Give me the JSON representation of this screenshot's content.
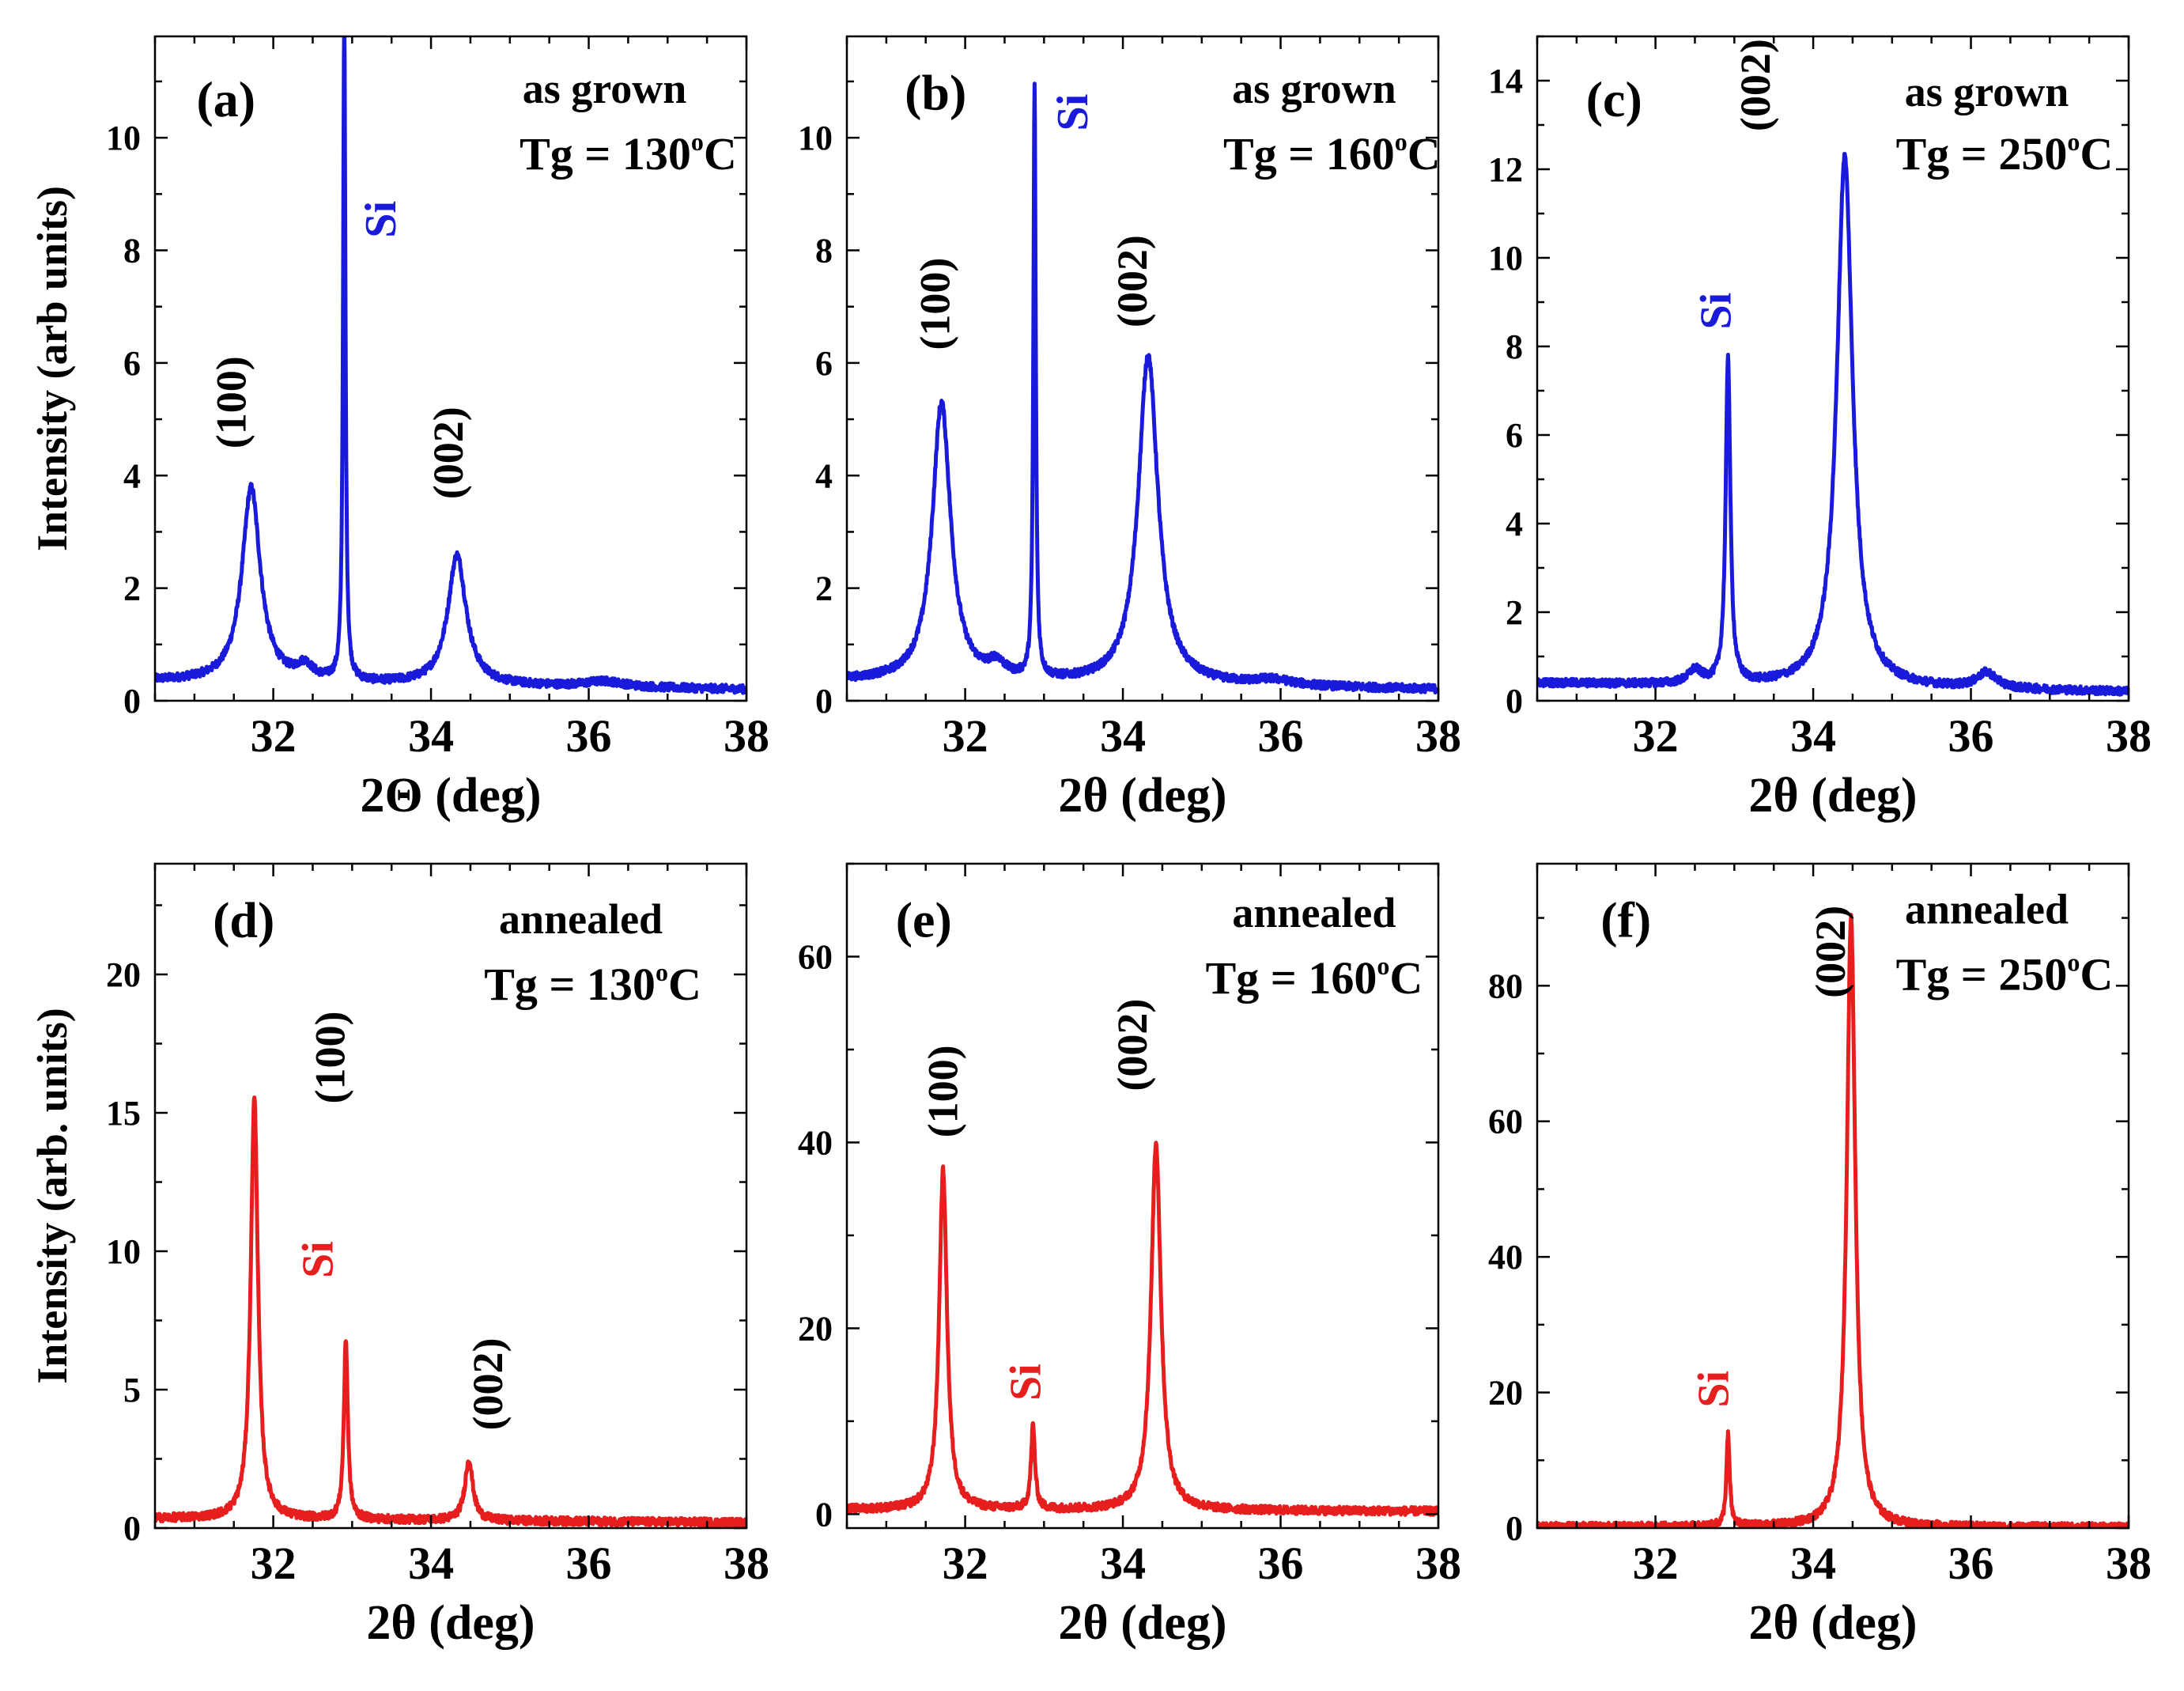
{
  "chart_data": [
    {
      "id": "a",
      "type": "line",
      "panel_label": "(a)",
      "state": "as grown",
      "tg_label": "Tg = 130",
      "tg_unit": "C",
      "tg_degree": "o",
      "xlabel": "2Θ (deg)",
      "ylabel": "Intensity (arb units)",
      "xlim": [
        30.5,
        38
      ],
      "ylim": [
        0,
        11.8
      ],
      "xticks": [
        32,
        34,
        36,
        38
      ],
      "yticks": [
        0,
        2,
        4,
        6,
        8,
        10
      ],
      "color": "#1a1adb",
      "baseline": [
        0.35,
        0.2
      ],
      "peaks": [
        {
          "label": "(100)",
          "center": 31.72,
          "height": 3.45,
          "width": 0.14,
          "label_color": "#000000"
        },
        {
          "label": "Si",
          "center": 32.9,
          "height": 11.8,
          "width": 0.018,
          "label_color": "#1a1adb"
        },
        {
          "label": "(002)",
          "center": 34.33,
          "height": 2.3,
          "width": 0.14,
          "label_color": "#000000"
        }
      ],
      "bumps": [
        {
          "center": 32.4,
          "height": 0.25,
          "width": 0.12
        },
        {
          "center": 36.2,
          "height": 0.1,
          "width": 0.3
        }
      ]
    },
    {
      "id": "b",
      "type": "line",
      "panel_label": "(b)",
      "state": "as grown",
      "tg_label": "Tg = 160",
      "tg_unit": "C",
      "tg_degree": "o",
      "xlabel": "2θ (deg)",
      "ylabel": "",
      "xlim": [
        30.5,
        38
      ],
      "ylim": [
        0,
        11.8
      ],
      "xticks": [
        32,
        34,
        36,
        38
      ],
      "yticks": [
        0,
        2,
        4,
        6,
        8,
        10
      ],
      "color": "#1a1adb",
      "baseline": [
        0.35,
        0.2
      ],
      "peaks": [
        {
          "label": "(100)",
          "center": 31.7,
          "height": 4.95,
          "width": 0.14,
          "label_color": "#000000"
        },
        {
          "label": "Si",
          "center": 32.88,
          "height": 10.5,
          "width": 0.018,
          "label_color": "#1a1adb"
        },
        {
          "label": "(002)",
          "center": 34.32,
          "height": 5.85,
          "width": 0.15,
          "label_color": "#000000"
        }
      ],
      "bumps": [
        {
          "center": 32.4,
          "height": 0.25,
          "width": 0.12
        },
        {
          "center": 35.9,
          "height": 0.1,
          "width": 0.3
        }
      ]
    },
    {
      "id": "c",
      "type": "line",
      "panel_label": "(c)",
      "state": "as grown",
      "tg_label": "Tg = 250",
      "tg_unit": "C",
      "tg_degree": "o",
      "xlabel": "2θ (deg)",
      "ylabel": "",
      "xlim": [
        30.5,
        38
      ],
      "ylim": [
        0,
        15
      ],
      "xticks": [
        32,
        34,
        36,
        38
      ],
      "yticks": [
        0,
        2,
        4,
        6,
        8,
        10,
        12,
        14
      ],
      "color": "#1a1adb",
      "baseline": [
        0.4,
        0.2
      ],
      "peaks": [
        {
          "label": "Si",
          "center": 32.92,
          "height": 7.4,
          "width": 0.035,
          "label_color": "#1a1adb"
        },
        {
          "label": "(002)",
          "center": 34.4,
          "height": 12.0,
          "width": 0.12,
          "label_color": "#000000"
        }
      ],
      "bumps": [
        {
          "center": 32.5,
          "height": 0.3,
          "width": 0.1
        },
        {
          "center": 36.2,
          "height": 0.35,
          "width": 0.15
        }
      ]
    },
    {
      "id": "d",
      "type": "line",
      "panel_label": "(d)",
      "state": "annealed",
      "tg_label": "Tg = 130",
      "tg_unit": "C",
      "tg_degree": "o",
      "xlabel": "2θ (deg)",
      "ylabel": "Intensity (arb. units)",
      "xlim": [
        30.5,
        38
      ],
      "ylim": [
        0,
        24
      ],
      "xticks": [
        32,
        34,
        36,
        38
      ],
      "yticks": [
        0,
        5,
        10,
        15,
        20
      ],
      "color": "#e61e1e",
      "baseline": [
        0.35,
        0.2
      ],
      "peaks": [
        {
          "label": "(100)",
          "center": 31.76,
          "height": 15.2,
          "width": 0.055,
          "label_color": "#000000"
        },
        {
          "label": "Si",
          "center": 32.92,
          "height": 6.5,
          "width": 0.03,
          "label_color": "#e61e1e"
        },
        {
          "label": "(002)",
          "center": 34.48,
          "height": 2.2,
          "width": 0.06,
          "label_color": "#000000"
        }
      ],
      "bumps": []
    },
    {
      "id": "e",
      "type": "line",
      "panel_label": "(e)",
      "state": "annealed",
      "tg_label": "Tg = 160",
      "tg_unit": "C",
      "tg_degree": "o",
      "xlabel": "2θ (deg)",
      "ylabel": "",
      "xlim": [
        30.5,
        38
      ],
      "ylim": [
        -1.5,
        70
      ],
      "xticks": [
        32,
        34,
        36,
        38
      ],
      "yticks": [
        0,
        20,
        40,
        60
      ],
      "color": "#e61e1e",
      "baseline": [
        0.5,
        0.3
      ],
      "peaks": [
        {
          "label": "(100)",
          "center": 31.72,
          "height": 36.5,
          "width": 0.06,
          "label_color": "#000000"
        },
        {
          "label": "Si",
          "center": 32.86,
          "height": 9.0,
          "width": 0.03,
          "label_color": "#e61e1e"
        },
        {
          "label": "(002)",
          "center": 34.42,
          "height": 39.5,
          "width": 0.075,
          "label_color": "#000000"
        }
      ],
      "bumps": []
    },
    {
      "id": "f",
      "type": "line",
      "panel_label": "(f)",
      "state": "annealed",
      "tg_label": "Tg = 250",
      "tg_unit": "C",
      "tg_degree": "o",
      "xlabel": "2θ (deg)",
      "ylabel": "",
      "xlim": [
        30.5,
        38
      ],
      "ylim": [
        0,
        98
      ],
      "xticks": [
        32,
        34,
        36,
        38
      ],
      "yticks": [
        0,
        20,
        40,
        60,
        80
      ],
      "color": "#e61e1e",
      "baseline": [
        0.2,
        0.1
      ],
      "peaks": [
        {
          "label": "Si",
          "center": 32.92,
          "height": 13.5,
          "width": 0.025,
          "label_color": "#e61e1e"
        },
        {
          "label": "(002)",
          "center": 34.48,
          "height": 90.0,
          "width": 0.065,
          "label_color": "#000000"
        }
      ],
      "bumps": []
    }
  ]
}
